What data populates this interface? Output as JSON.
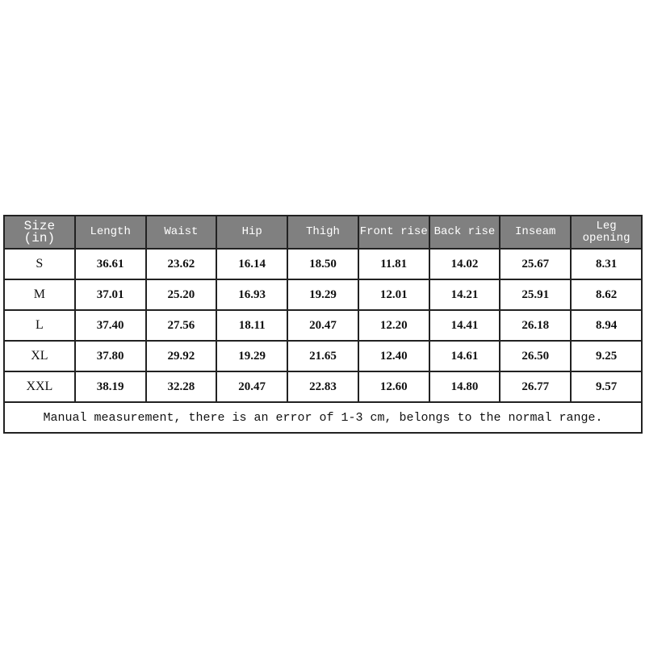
{
  "table": {
    "headers": [
      "Size (in)",
      "Length",
      "Waist",
      "Hip",
      "Thigh",
      "Front rise",
      "Back rise",
      "Inseam",
      "Leg opening"
    ],
    "header_size_line1": "Size",
    "header_size_line2": "(in)",
    "rows": [
      [
        "S",
        "36.61",
        "23.62",
        "16.14",
        "18.50",
        "11.81",
        "14.02",
        "25.67",
        "8.31"
      ],
      [
        "M",
        "37.01",
        "25.20",
        "16.93",
        "19.29",
        "12.01",
        "14.21",
        "25.91",
        "8.62"
      ],
      [
        "L",
        "37.40",
        "27.56",
        "18.11",
        "20.47",
        "12.20",
        "14.41",
        "26.18",
        "8.94"
      ],
      [
        "XL",
        "37.80",
        "29.92",
        "19.29",
        "21.65",
        "12.40",
        "14.61",
        "26.50",
        "9.25"
      ],
      [
        "XXL",
        "38.19",
        "32.28",
        "20.47",
        "22.83",
        "12.60",
        "14.80",
        "26.77",
        "9.57"
      ]
    ],
    "note": "Manual measurement, there is an error of 1-3 cm, belongs to the normal range.",
    "header_bg": "#808080",
    "header_text_color": "#ffffff"
  }
}
